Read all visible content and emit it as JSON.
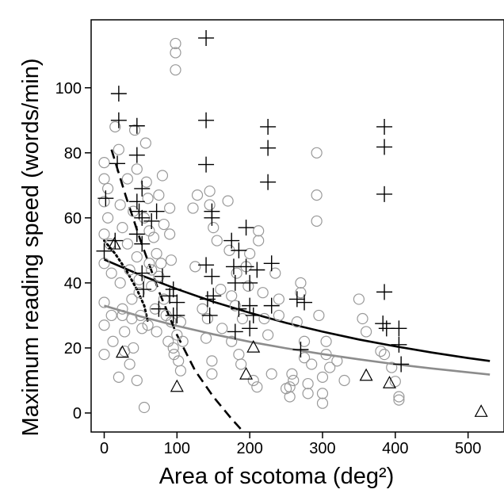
{
  "chart_data": {
    "type": "scatter",
    "title": "",
    "xlabel": "Area of scotoma (deg²)",
    "ylabel": "Maximum reading speed (words/min)",
    "xlim": [
      -15,
      540
    ],
    "ylim": [
      -5,
      118
    ],
    "x_ticks": [
      0,
      100,
      200,
      300,
      400,
      500
    ],
    "y_ticks": [
      0,
      20,
      40,
      60,
      80,
      100
    ],
    "grid": false,
    "legend": "none",
    "series": [
      {
        "marker": "cross",
        "color": "#000000",
        "points": [
          [
            0,
            49.8
          ],
          [
            2,
            66
          ],
          [
            15,
            53
          ],
          [
            18,
            76.7
          ],
          [
            20,
            98.2
          ],
          [
            20,
            90
          ],
          [
            45,
            88.3
          ],
          [
            45,
            79.3
          ],
          [
            45,
            65
          ],
          [
            45,
            55
          ],
          [
            48,
            62
          ],
          [
            52,
            69
          ],
          [
            52,
            60
          ],
          [
            52,
            52
          ],
          [
            52,
            43
          ],
          [
            54,
            38
          ],
          [
            65,
            59
          ],
          [
            72,
            62
          ],
          [
            75,
            32
          ],
          [
            80,
            42
          ],
          [
            90,
            36
          ],
          [
            95,
            38
          ],
          [
            100,
            34
          ],
          [
            100,
            30
          ],
          [
            95,
            30
          ],
          [
            140,
            115.3
          ],
          [
            140,
            90
          ],
          [
            140,
            76.4
          ],
          [
            140,
            45.5
          ],
          [
            142,
            35
          ],
          [
            145,
            30
          ],
          [
            148,
            62
          ],
          [
            148,
            60
          ],
          [
            148,
            42
          ],
          [
            150,
            36
          ],
          [
            175,
            53
          ],
          [
            178,
            45
          ],
          [
            180,
            40
          ],
          [
            185,
            32
          ],
          [
            180,
            25
          ],
          [
            185,
            50
          ],
          [
            195,
            57
          ],
          [
            195,
            45
          ],
          [
            200,
            40
          ],
          [
            200,
            33
          ],
          [
            205,
            30
          ],
          [
            200,
            26
          ],
          [
            210,
            44
          ],
          [
            225,
            88
          ],
          [
            225,
            81.5
          ],
          [
            225,
            71
          ],
          [
            230,
            46
          ],
          [
            230,
            33
          ],
          [
            265,
            35
          ],
          [
            270,
            19.5
          ],
          [
            275,
            34
          ],
          [
            385,
            88
          ],
          [
            385,
            81.8
          ],
          [
            385,
            67.3
          ],
          [
            385,
            37.2
          ],
          [
            383,
            27.5
          ],
          [
            388,
            26
          ],
          [
            405,
            26
          ],
          [
            405,
            21
          ],
          [
            408,
            15
          ]
        ]
      },
      {
        "marker": "circle",
        "color": "#999999",
        "points": [
          [
            0,
            77
          ],
          [
            0,
            72
          ],
          [
            0,
            65
          ],
          [
            0,
            55
          ],
          [
            0,
            46
          ],
          [
            0,
            34
          ],
          [
            0,
            27
          ],
          [
            0,
            18
          ],
          [
            5,
            69
          ],
          [
            5,
            60
          ],
          [
            8,
            52
          ],
          [
            10,
            43
          ],
          [
            10,
            30
          ],
          [
            12,
            22
          ],
          [
            15,
            88
          ],
          [
            20,
            81
          ],
          [
            20,
            11
          ],
          [
            22,
            64
          ],
          [
            22,
            40
          ],
          [
            25,
            57
          ],
          [
            25,
            32
          ],
          [
            28,
            25
          ],
          [
            28,
            19
          ],
          [
            32,
            72
          ],
          [
            32,
            52
          ],
          [
            35,
            44
          ],
          [
            35,
            15
          ],
          [
            38,
            35
          ],
          [
            38,
            29
          ],
          [
            40,
            62
          ],
          [
            40,
            20
          ],
          [
            42,
            87
          ],
          [
            45,
            75
          ],
          [
            45,
            48
          ],
          [
            48,
            41
          ],
          [
            48,
            37
          ],
          [
            50,
            30
          ],
          [
            52,
            26
          ],
          [
            55,
            1.7
          ],
          [
            55,
            60
          ],
          [
            57,
            83
          ],
          [
            58,
            71
          ],
          [
            60,
            66
          ],
          [
            62,
            56
          ],
          [
            62,
            46
          ],
          [
            65,
            44
          ],
          [
            65,
            39
          ],
          [
            68,
            54
          ],
          [
            70,
            32
          ],
          [
            72,
            49
          ],
          [
            72,
            25
          ],
          [
            75,
            67
          ],
          [
            75,
            42
          ],
          [
            78,
            46
          ],
          [
            80,
            73
          ],
          [
            82,
            58
          ],
          [
            82,
            35
          ],
          [
            85,
            30
          ],
          [
            88,
            22
          ],
          [
            90,
            63
          ],
          [
            90,
            55
          ],
          [
            92,
            47
          ],
          [
            92,
            28
          ],
          [
            95,
            20
          ],
          [
            96,
            18
          ],
          [
            98,
            113.6
          ],
          [
            98,
            110.8
          ],
          [
            98,
            105.5
          ],
          [
            100,
            24
          ],
          [
            102,
            16
          ],
          [
            105,
            28
          ],
          [
            105,
            13
          ],
          [
            108,
            22
          ],
          [
            122,
            63
          ],
          [
            125,
            45
          ],
          [
            128,
            67
          ],
          [
            135,
            32
          ],
          [
            140,
            23
          ],
          [
            142,
            29
          ],
          [
            145,
            68.2
          ],
          [
            145,
            64
          ],
          [
            148,
            16
          ],
          [
            148,
            12
          ],
          [
            150,
            57
          ],
          [
            155,
            53
          ],
          [
            160,
            38
          ],
          [
            162,
            26
          ],
          [
            170,
            65.2
          ],
          [
            172,
            50
          ],
          [
            175,
            22
          ],
          [
            175,
            36
          ],
          [
            180,
            33
          ],
          [
            182,
            43
          ],
          [
            185,
            18
          ],
          [
            188,
            15
          ],
          [
            190,
            29
          ],
          [
            195,
            45
          ],
          [
            198,
            39
          ],
          [
            200,
            49
          ],
          [
            205,
            10
          ],
          [
            210,
            8
          ],
          [
            212,
            56
          ],
          [
            212,
            53
          ],
          [
            218,
            37
          ],
          [
            220,
            29
          ],
          [
            225,
            24
          ],
          [
            230,
            12
          ],
          [
            235,
            43
          ],
          [
            240,
            35
          ],
          [
            240,
            30
          ],
          [
            250,
            7.5
          ],
          [
            255,
            5
          ],
          [
            255,
            8
          ],
          [
            258,
            12
          ],
          [
            260,
            10
          ],
          [
            265,
            28
          ],
          [
            270,
            40
          ],
          [
            270,
            37
          ],
          [
            275,
            22
          ],
          [
            275,
            17
          ],
          [
            280,
            6
          ],
          [
            280,
            9
          ],
          [
            285,
            15
          ],
          [
            292,
            80
          ],
          [
            292,
            67
          ],
          [
            292,
            59
          ],
          [
            295,
            30
          ],
          [
            300,
            11
          ],
          [
            300,
            6
          ],
          [
            300,
            3
          ],
          [
            305,
            22
          ],
          [
            305,
            18
          ],
          [
            310,
            14
          ],
          [
            320,
            16
          ],
          [
            330,
            10
          ],
          [
            350,
            35
          ],
          [
            355,
            29
          ],
          [
            360,
            25
          ],
          [
            380,
            19
          ],
          [
            385,
            18
          ],
          [
            395,
            14
          ],
          [
            400,
            9.7
          ],
          [
            405,
            5
          ],
          [
            405,
            4
          ],
          [
            25,
            30
          ],
          [
            45,
            10
          ],
          [
            60,
            27
          ]
        ]
      },
      {
        "marker": "triangle",
        "color": "#000000",
        "points": [
          [
            14,
            52
          ],
          [
            25,
            18.7
          ],
          [
            100,
            8.2
          ],
          [
            195,
            12
          ],
          [
            205,
            20.3
          ],
          [
            360,
            11.6
          ],
          [
            392,
            9.3
          ],
          [
            518,
            0.5
          ]
        ]
      }
    ],
    "curves": [
      {
        "style": "solid",
        "color": "#000000",
        "x": [
          0,
          50,
          100,
          150,
          200,
          250,
          300,
          350,
          400,
          450,
          500,
          530
        ],
        "y": [
          47.2,
          42.4,
          38.1,
          34.2,
          30.8,
          27.7,
          25.0,
          22.6,
          20.5,
          18.6,
          16.9,
          16.0
        ]
      },
      {
        "style": "solid",
        "color": "#8c8c8c",
        "x": [
          0,
          50,
          100,
          150,
          200,
          250,
          300,
          350,
          400,
          450,
          500,
          530
        ],
        "y": [
          33.0,
          29.7,
          26.8,
          24.2,
          21.9,
          19.9,
          18.1,
          16.5,
          15.0,
          13.7,
          12.5,
          11.8
        ]
      },
      {
        "style": "dashed",
        "color": "#000000",
        "x": [
          10,
          30,
          50,
          75,
          100,
          125,
          150,
          175,
          188
        ],
        "y": [
          81,
          66.5,
          53,
          37.5,
          24,
          13,
          5,
          -1.8,
          -5
        ]
      },
      {
        "style": "dotted",
        "color": "#000000",
        "x": [
          0,
          15,
          30,
          45,
          55,
          60
        ],
        "y": [
          53,
          49,
          44,
          38,
          33,
          28
        ]
      }
    ]
  }
}
